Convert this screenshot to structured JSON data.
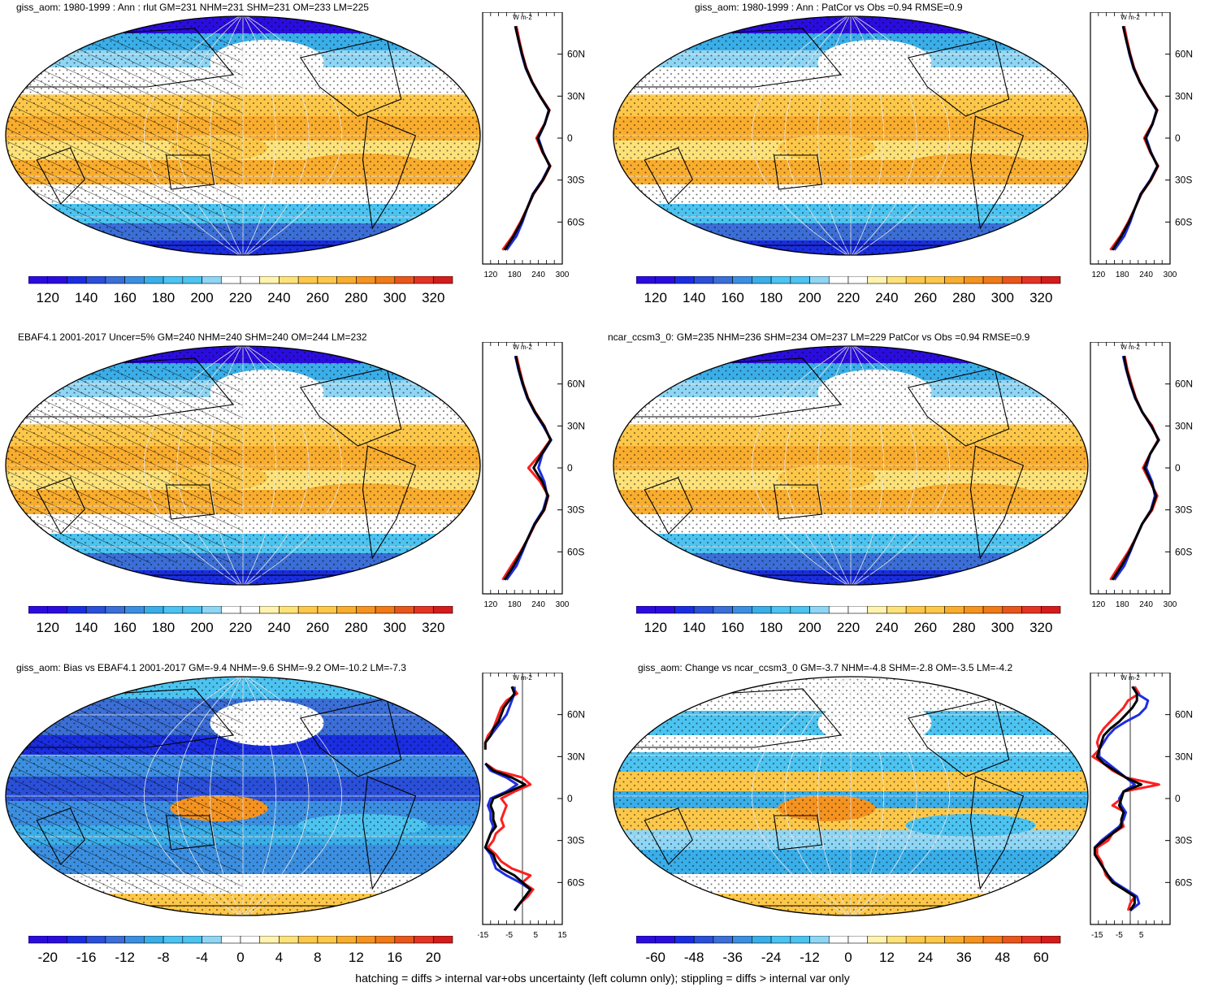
{
  "footnote": "hatching = diffs > internal var+obs uncertainty (left column only); stippling = diffs > internal var only",
  "colors": {
    "mean_scale": [
      "#2a0dde",
      "#1a2de0",
      "#2a4fd8",
      "#3b6ed6",
      "#3c8fe0",
      "#3aaee8",
      "#4cc3f0",
      "#8fd6f5",
      "#ffffff",
      "#ffffff",
      "#fff3b0",
      "#fde27a",
      "#fdc84a",
      "#f9ad2e",
      "#f59320",
      "#f07a18",
      "#e9561c",
      "#e33423",
      "#d41c1c"
    ],
    "diff_scale": [
      "#2a0dde",
      "#1a2de0",
      "#2a4fd8",
      "#3b6ed6",
      "#3c8fe0",
      "#3aaee8",
      "#4cc3f0",
      "#8fd6f5",
      "#ffffff",
      "#ffffff",
      "#fff3b0",
      "#fde27a",
      "#fdc84a",
      "#f9ad2e",
      "#f59320",
      "#f07a18",
      "#e9561c",
      "#e33423",
      "#d41c1c"
    ],
    "line_model": "#ff1e1e",
    "line_obs": "#1e2ee0",
    "line_black": "#000000"
  },
  "chart_data": [
    {
      "type": "heatmap",
      "title": "giss_aom: 1980-1999 : Ann : rlut GM=231 NHM=231 SHM=231 OM=233 LM=225",
      "colorbar_labels": [
        "120",
        "140",
        "160",
        "180",
        "200",
        "220",
        "240",
        "260",
        "280",
        "300",
        "320"
      ],
      "hatching": true,
      "profile": {
        "unit": "W m-2",
        "x_ticks": [
          "120",
          "180",
          "240",
          "300"
        ],
        "xlim": [
          100,
          300
        ],
        "y_ticks": [
          "60N",
          "30N",
          "0",
          "30S",
          "60S"
        ],
        "ylim": [
          -90,
          90
        ],
        "lat": [
          80,
          70,
          60,
          50,
          40,
          30,
          20,
          10,
          0,
          -10,
          -20,
          -30,
          -40,
          -50,
          -60,
          -70,
          -80
        ],
        "series": [
          {
            "values": [
              185,
              192,
              200,
              210,
              225,
              245,
              268,
              255,
              235,
              250,
              270,
              252,
              228,
              212,
              195,
              175,
              150
            ]
          },
          {
            "values": [
              182,
              190,
              198,
              208,
              224,
              244,
              266,
              256,
              240,
              252,
              268,
              250,
              226,
              212,
              200,
              185,
              160
            ]
          },
          {
            "values": [
              182,
              190,
              199,
              209,
              224,
              244,
              267,
              256,
              238,
              251,
              269,
              251,
              227,
              212,
              197,
              178,
              155
            ]
          }
        ]
      }
    },
    {
      "type": "heatmap",
      "title": "giss_aom: 1980-1999 : Ann : PatCor vs Obs =0.94 RMSE=0.9",
      "colorbar_labels": [
        "120",
        "140",
        "160",
        "180",
        "200",
        "220",
        "240",
        "260",
        "280",
        "300",
        "320"
      ],
      "hatching": false,
      "profile": {
        "unit": "W m-2",
        "x_ticks": [
          "120",
          "180",
          "240",
          "300"
        ],
        "xlim": [
          100,
          300
        ],
        "y_ticks": [
          "60N",
          "30N",
          "0",
          "30S",
          "60S"
        ],
        "ylim": [
          -90,
          90
        ],
        "lat": [
          80,
          70,
          60,
          50,
          40,
          30,
          20,
          10,
          0,
          -10,
          -20,
          -30,
          -40,
          -50,
          -60,
          -70,
          -80
        ],
        "series": [
          {
            "values": [
              185,
              192,
              200,
              210,
              225,
              245,
              268,
              255,
              235,
              250,
              270,
              252,
              228,
              212,
              195,
              175,
              150
            ]
          },
          {
            "values": [
              182,
              190,
              198,
              208,
              224,
              244,
              266,
              256,
              240,
              252,
              268,
              250,
              226,
              212,
              200,
              185,
              160
            ]
          },
          {
            "values": [
              182,
              190,
              199,
              209,
              224,
              244,
              267,
              256,
              238,
              251,
              269,
              251,
              227,
              212,
              197,
              178,
              155
            ]
          }
        ]
      }
    },
    {
      "type": "heatmap",
      "title": "EBAF4.1 2001-2017 Uncer=5% GM=240 NHM=240 SHM=240 OM=244 LM=232",
      "colorbar_labels": [
        "120",
        "140",
        "160",
        "180",
        "200",
        "220",
        "240",
        "260",
        "280",
        "300",
        "320"
      ],
      "hatching": true,
      "profile": {
        "unit": "W m-2",
        "x_ticks": [
          "120",
          "180",
          "240",
          "300"
        ],
        "xlim": [
          100,
          300
        ],
        "y_ticks": [
          "60N",
          "30N",
          "0",
          "30S",
          "60S"
        ],
        "ylim": [
          -90,
          90
        ],
        "lat": [
          80,
          70,
          60,
          50,
          40,
          30,
          20,
          10,
          0,
          -10,
          -20,
          -30,
          -40,
          -50,
          -60,
          -70,
          -80
        ],
        "series": [
          {
            "values": [
              185,
              193,
              202,
              214,
              232,
              255,
              270,
              245,
              215,
              245,
              265,
              255,
              232,
              215,
              195,
              172,
              150
            ]
          },
          {
            "values": [
              182,
              190,
              200,
              212,
              230,
              252,
              272,
              250,
              240,
              255,
              262,
              252,
              230,
              214,
              200,
              185,
              160
            ]
          },
          {
            "values": [
              183,
              191,
              201,
              213,
              231,
              254,
              271,
              248,
              228,
              250,
              264,
              254,
              231,
              214,
              197,
              178,
              155
            ]
          }
        ]
      }
    },
    {
      "type": "heatmap",
      "title": "ncar_ccsm3_0: GM=235 NHM=236 SHM=234 OM=237 LM=229 PatCor vs Obs =0.94 RMSE=0.9",
      "colorbar_labels": [
        "120",
        "140",
        "160",
        "180",
        "200",
        "220",
        "240",
        "260",
        "280",
        "300",
        "320"
      ],
      "hatching": false,
      "profile": {
        "unit": "W m-2",
        "x_ticks": [
          "120",
          "180",
          "240",
          "300"
        ],
        "xlim": [
          100,
          300
        ],
        "y_ticks": [
          "60N",
          "30N",
          "0",
          "30S",
          "60S"
        ],
        "ylim": [
          -90,
          90
        ],
        "lat": [
          80,
          70,
          60,
          50,
          40,
          30,
          20,
          10,
          0,
          -10,
          -20,
          -30,
          -40,
          -50,
          -60,
          -70,
          -80
        ],
        "series": [
          {
            "values": [
              186,
              193,
              203,
              214,
              230,
              255,
              270,
              250,
              232,
              250,
              268,
              255,
              230,
              214,
              195,
              172,
              150
            ]
          },
          {
            "values": [
              182,
              190,
              200,
              212,
              230,
              252,
              272,
              250,
              240,
              255,
              262,
              252,
              230,
              214,
              200,
              185,
              160
            ]
          },
          {
            "values": [
              184,
              191,
              201,
              213,
              230,
              253,
              271,
              250,
              236,
              252,
              265,
              253,
              230,
              214,
              198,
              178,
              155
            ]
          }
        ]
      }
    },
    {
      "type": "heatmap",
      "title": "giss_aom: Bias vs EBAF4.1 2001-2017 GM=-9.4 NHM=-9.6 SHM=-9.2 OM=-10.2 LM=-7.3",
      "colorbar_labels": [
        "-20",
        "-16",
        "-12",
        "-8",
        "-4",
        "0",
        "4",
        "8",
        "12",
        "16",
        "20"
      ],
      "hatching": true,
      "profile": {
        "unit": "W m-2",
        "x_ticks": [
          "-15",
          "-5",
          "5",
          "15"
        ],
        "xlim": [
          -15,
          15
        ],
        "y_ticks": [
          "60N",
          "30N",
          "0",
          "30S",
          "60S"
        ],
        "ylim": [
          -90,
          90
        ],
        "lat": [
          80,
          75,
          70,
          65,
          60,
          55,
          50,
          45,
          40,
          35,
          30,
          25,
          20,
          15,
          10,
          5,
          0,
          -5,
          -10,
          -15,
          -20,
          -25,
          -30,
          -35,
          -40,
          -45,
          -50,
          -55,
          -60,
          -65,
          -70,
          -75,
          -80
        ],
        "series": [
          {
            "values": [
              -4,
              -2,
              -6,
              -8,
              -9,
              -10,
              -11,
              -13,
              -14,
              -14,
              null,
              -14,
              -10,
              0,
              3,
              -3,
              -8,
              -6,
              -7,
              -8,
              -7,
              -10,
              -11,
              -13,
              -10,
              -8,
              -4,
              3,
              0,
              4,
              2,
              -1,
              -3
            ]
          },
          {
            "values": [
              -3,
              -3,
              -4,
              -5,
              -6,
              -8,
              -10,
              -12,
              -14,
              null,
              null,
              -14,
              -12,
              -6,
              -2,
              -6,
              -12,
              -13,
              -12,
              -12,
              -11,
              -12,
              -13,
              -14,
              -12,
              -11,
              -10,
              -6,
              -1,
              3,
              1,
              -1,
              -3
            ]
          },
          {
            "values": [
              -4,
              -3,
              -5,
              -7,
              -8,
              -9,
              -11,
              -12,
              -14,
              -14,
              null,
              -14,
              -11,
              -4,
              1,
              -5,
              -11,
              -12,
              -11,
              -11,
              -10,
              -12,
              -13,
              -14,
              -11,
              -10,
              -8,
              -3,
              0,
              3,
              1,
              -1,
              -3
            ]
          }
        ]
      }
    },
    {
      "type": "heatmap",
      "title": "giss_aom: Change vs ncar_ccsm3_0 GM=-3.7 NHM=-4.8 SHM=-2.8 OM=-3.5 LM=-4.2",
      "colorbar_labels": [
        "-60",
        "-48",
        "-36",
        "-24",
        "-12",
        "0",
        "12",
        "24",
        "36",
        "48",
        "60"
      ],
      "hatching": false,
      "profile": {
        "unit": "W m-2",
        "x_ticks": [
          "-15",
          "-5",
          "5"
        ],
        "xlim": [
          -18,
          18
        ],
        "y_ticks": [
          "60N",
          "30N",
          "0",
          "30S",
          "60S"
        ],
        "ylim": [
          -90,
          90
        ],
        "lat": [
          80,
          75,
          70,
          65,
          60,
          55,
          50,
          45,
          40,
          35,
          30,
          25,
          20,
          15,
          10,
          5,
          0,
          -5,
          -10,
          -15,
          -20,
          -25,
          -30,
          -35,
          -40,
          -45,
          -50,
          -55,
          -60,
          -65,
          -70,
          -75,
          -80
        ],
        "series": [
          {
            "values": [
              2,
              4,
              -1,
              -3,
              -6,
              -9,
              -12,
              -14,
              -15,
              -14,
              -17,
              -12,
              -8,
              -2,
              13,
              -3,
              -4,
              -8,
              -2,
              -4,
              -3,
              -8,
              -10,
              -15,
              -15,
              -13,
              -12,
              -11,
              -8,
              -3,
              2,
              0,
              -1
            ]
          },
          {
            "values": [
              1,
              3,
              8,
              7,
              4,
              -2,
              -7,
              -10,
              -12,
              -14,
              -14,
              -10,
              -6,
              -2,
              2,
              -3,
              -5,
              -4,
              -2,
              -3,
              -5,
              -9,
              -13,
              -16,
              -16,
              -14,
              -12,
              -10,
              -7,
              -2,
              3,
              4,
              0
            ]
          },
          {
            "values": [
              1,
              3,
              3,
              1,
              -2,
              -5,
              -9,
              -12,
              -13,
              -14,
              -15,
              -12,
              -7,
              -2,
              5,
              -3,
              -4,
              -5,
              -3,
              -4,
              -4,
              -8,
              -12,
              -16,
              -16,
              -14,
              -12,
              -10,
              -8,
              -3,
              2,
              2,
              0
            ]
          }
        ]
      }
    }
  ]
}
